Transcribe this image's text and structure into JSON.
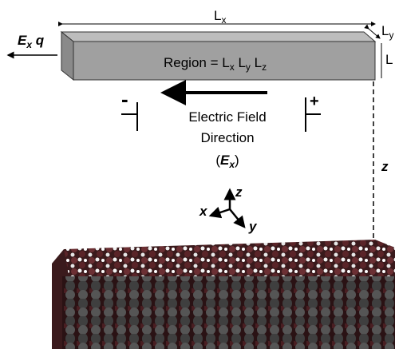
{
  "dimensions": {
    "length": {
      "symbol": "L",
      "sub": "x"
    },
    "width": {
      "symbol": "L",
      "sub": "y"
    },
    "height": {
      "symbol": "L"
    }
  },
  "region": {
    "prefix": "Region = ",
    "terms": [
      {
        "symbol": "L",
        "sub": "x"
      },
      {
        "symbol": "L",
        "sub": "y"
      },
      {
        "symbol": "L",
        "sub": "z"
      }
    ]
  },
  "force": {
    "symbol": "E",
    "sub": "x",
    "charge": "q"
  },
  "field": {
    "minus": "-",
    "plus": "+",
    "line1": "Electric Field",
    "line2": "Direction",
    "open": "(",
    "symbol": "E",
    "sub": "x",
    "close": ")"
  },
  "distance": "z",
  "axes": {
    "x": "x",
    "y": "y",
    "z": "z"
  }
}
